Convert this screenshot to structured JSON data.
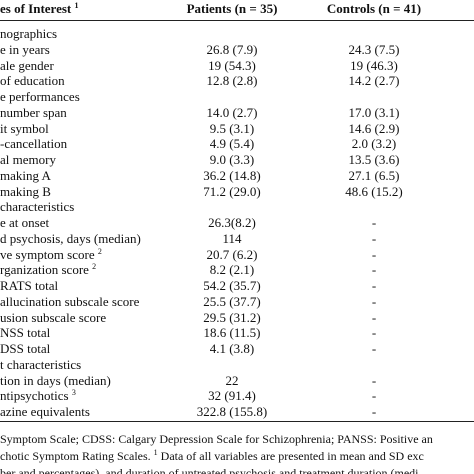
{
  "table": {
    "header": {
      "label": "es of Interest",
      "label_sup": "1",
      "patients": "Patients (n = 35)",
      "controls": "Controls (n = 41)"
    },
    "rows": [
      {
        "label": "nographics"
      },
      {
        "label": "e in years",
        "patients": "26.8 (7.9)",
        "controls": "24.3 (7.5)"
      },
      {
        "label": "ale gender",
        "patients": "19 (54.3)",
        "controls": "19 (46.3)"
      },
      {
        "label": "of education",
        "patients": "12.8 (2.8)",
        "controls": "14.2 (2.7)"
      },
      {
        "label": "e performances"
      },
      {
        "label": "number span",
        "patients": "14.0 (2.7)",
        "controls": "17.0 (3.1)"
      },
      {
        "label": "it symbol",
        "patients": "9.5 (3.1)",
        "controls": "14.6 (2.9)"
      },
      {
        "label": "-cancellation",
        "patients": "4.9 (5.4)",
        "controls": "2.0 (3.2)"
      },
      {
        "label": "al memory",
        "patients": "9.0 (3.3)",
        "controls": "13.5 (3.6)"
      },
      {
        "label": "making A",
        "patients": "36.2 (14.8)",
        "controls": "27.1 (6.5)"
      },
      {
        "label": "making B",
        "patients": "71.2 (29.0)",
        "controls": "48.6 (15.2)"
      },
      {
        "label": "characteristics"
      },
      {
        "label": "e at onset",
        "patients": "26.3(8.2)",
        "controls": "-"
      },
      {
        "label": "d psychosis, days (median)",
        "patients": "114",
        "controls": "-"
      },
      {
        "label": "ve symptom score",
        "sup": "2",
        "patients": "20.7 (6.2)",
        "controls": "-"
      },
      {
        "label": "rganization score",
        "sup": "2",
        "patients": "8.2 (2.1)",
        "controls": "-"
      },
      {
        "label": "RATS total",
        "patients": "54.2 (35.7)",
        "controls": "-"
      },
      {
        "label": "allucination subscale score",
        "patients": "25.5 (37.7)",
        "controls": "-"
      },
      {
        "label": "usion subscale score",
        "patients": "29.5 (31.2)",
        "controls": "-"
      },
      {
        "label": "NSS total",
        "patients": "18.6 (11.5)",
        "controls": "-"
      },
      {
        "label": "DSS total",
        "patients": "4.1 (3.8)",
        "controls": "-"
      },
      {
        "label": "t characteristics"
      },
      {
        "label": "tion in days (median)",
        "patients": "22",
        "controls": "-"
      },
      {
        "label": "ntipsychotics",
        "sup": "3",
        "patients": "32 (91.4)",
        "controls": "-"
      },
      {
        "label": "azine equivalents",
        "patients": "322.8 (155.8)",
        "controls": "-"
      }
    ]
  },
  "footnotes": [
    [
      {
        "text": "Symptom Scale; CDSS: Calgary Depression Scale for Schizophrenia; PANSS: Positive an"
      }
    ],
    [
      {
        "text": "chotic Symptom Rating Scales. "
      },
      {
        "text": "1",
        "sup": true
      },
      {
        "text": " Data of all variables are presented in mean and SD exc"
      }
    ],
    [
      {
        "text": "ber and percentages), and duration of untreated psychosis and treatment duration (medi"
      }
    ]
  ]
}
